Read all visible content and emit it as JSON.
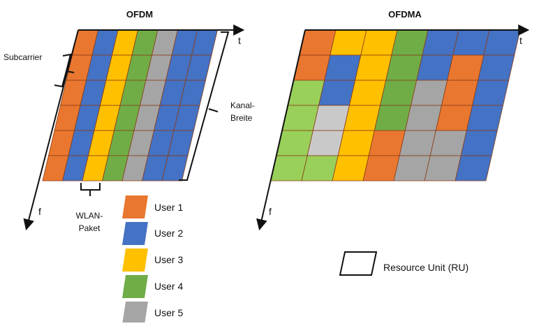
{
  "colors": {
    "user1": "#E9772F",
    "user2": "#4472C4",
    "user3": "#FFC000",
    "user4": "#70AD47",
    "user5": "#A5A5A5",
    "user4_light": "#99D05A",
    "user5_light": "#C9C9C9",
    "grid": "#8A3B14",
    "frame": "#111111"
  },
  "ofdm": {
    "title": "OFDM",
    "time_label": "t",
    "freq_label": "f",
    "subcarrier_label": "Subcarrier",
    "packet_label_line1": "WLAN-",
    "packet_label_line2": "Paket",
    "width_label_line1": "Kanal-",
    "width_label_line2": "Breite",
    "column_users": [
      1,
      2,
      3,
      4,
      5,
      2,
      2
    ]
  },
  "ofdma": {
    "title": "OFDMA",
    "time_label": "t",
    "freq_label": "f",
    "cell_users": [
      [
        "1",
        "3",
        "3",
        "4",
        "2",
        "2",
        "2"
      ],
      [
        "1",
        "2",
        "3",
        "4",
        "2",
        "1",
        "2"
      ],
      [
        "4L",
        "2",
        "3",
        "4",
        "5",
        "1",
        "2"
      ],
      [
        "4L",
        "5L",
        "3",
        "4",
        "5",
        "1",
        "2"
      ],
      [
        "4L",
        "5L",
        "3",
        "1",
        "5",
        "5",
        "2"
      ],
      [
        "4L",
        "4L",
        "3",
        "1",
        "5",
        "5",
        "2"
      ]
    ]
  },
  "legend": {
    "items": [
      {
        "label": "User 1",
        "color_key": "user1"
      },
      {
        "label": "User 2",
        "color_key": "user2"
      },
      {
        "label": "User 3",
        "color_key": "user3"
      },
      {
        "label": "User 4",
        "color_key": "user4"
      },
      {
        "label": "User 5",
        "color_key": "user5"
      }
    ],
    "ru_label": "Resource Unit (RU)"
  }
}
